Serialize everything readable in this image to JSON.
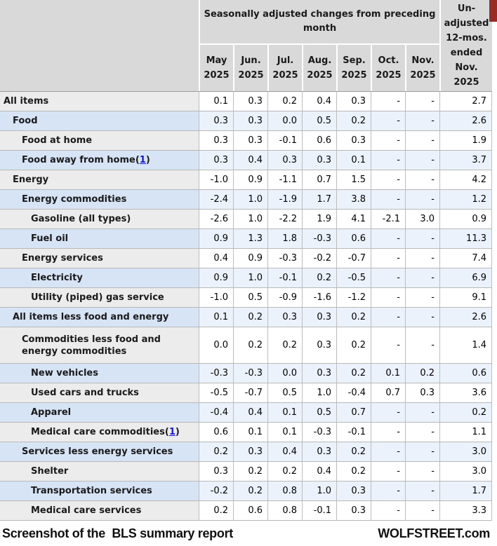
{
  "colors": {
    "header-gray": "#d9d9d9",
    "header-line": "#9c9c9c",
    "row-gray-label": "#ececec",
    "row-gray-value": "#ffffff",
    "row-blue-label": "#d7e4f6",
    "row-blue-value": "#ebf2fb",
    "grid-line-v": "#bdbdbd",
    "grid-line-h": "#b8b8b8",
    "text-dark": "#1a1a1a",
    "link-blue": "#1616e0",
    "brand-red": "#9a2a22"
  },
  "table": {
    "span_header": "Seasonally adjusted changes from preceding month",
    "year": "2025",
    "months": [
      "May",
      "Jun.",
      "Jul.",
      "Aug.",
      "Sep.",
      "Oct.",
      "Nov."
    ],
    "last_col_lines": [
      "Un-",
      "adjusted",
      "12-mos.",
      "ended",
      "Nov.",
      "2025"
    ],
    "rows": [
      {
        "label": "All items",
        "indent": 0,
        "footnote": null,
        "tall": false,
        "values": [
          "0.1",
          "0.3",
          "0.2",
          "0.4",
          "0.3",
          "-",
          "-",
          "2.7"
        ]
      },
      {
        "label": "Food",
        "indent": 1,
        "footnote": null,
        "tall": false,
        "values": [
          "0.3",
          "0.3",
          "0.0",
          "0.5",
          "0.2",
          "-",
          "-",
          "2.6"
        ]
      },
      {
        "label": "Food at home",
        "indent": 2,
        "footnote": null,
        "tall": false,
        "values": [
          "0.3",
          "0.3",
          "-0.1",
          "0.6",
          "0.3",
          "-",
          "-",
          "1.9"
        ]
      },
      {
        "label": "Food away from home",
        "indent": 2,
        "footnote": "1",
        "tall": false,
        "values": [
          "0.3",
          "0.4",
          "0.3",
          "0.3",
          "0.1",
          "-",
          "-",
          "3.7"
        ]
      },
      {
        "label": "Energy",
        "indent": 1,
        "footnote": null,
        "tall": false,
        "values": [
          "-1.0",
          "0.9",
          "-1.1",
          "0.7",
          "1.5",
          "-",
          "-",
          "4.2"
        ]
      },
      {
        "label": "Energy commodities",
        "indent": 2,
        "footnote": null,
        "tall": false,
        "values": [
          "-2.4",
          "1.0",
          "-1.9",
          "1.7",
          "3.8",
          "-",
          "-",
          "1.2"
        ]
      },
      {
        "label": "Gasoline (all types)",
        "indent": 3,
        "footnote": null,
        "tall": false,
        "values": [
          "-2.6",
          "1.0",
          "-2.2",
          "1.9",
          "4.1",
          "-2.1",
          "3.0",
          "0.9"
        ]
      },
      {
        "label": "Fuel oil",
        "indent": 3,
        "footnote": null,
        "tall": false,
        "values": [
          "0.9",
          "1.3",
          "1.8",
          "-0.3",
          "0.6",
          "-",
          "-",
          "11.3"
        ]
      },
      {
        "label": "Energy services",
        "indent": 2,
        "footnote": null,
        "tall": false,
        "values": [
          "0.4",
          "0.9",
          "-0.3",
          "-0.2",
          "-0.7",
          "-",
          "-",
          "7.4"
        ]
      },
      {
        "label": "Electricity",
        "indent": 3,
        "footnote": null,
        "tall": false,
        "values": [
          "0.9",
          "1.0",
          "-0.1",
          "0.2",
          "-0.5",
          "-",
          "-",
          "6.9"
        ]
      },
      {
        "label": "Utility (piped) gas service",
        "indent": 3,
        "footnote": null,
        "tall": false,
        "values": [
          "-1.0",
          "0.5",
          "-0.9",
          "-1.6",
          "-1.2",
          "-",
          "-",
          "9.1"
        ]
      },
      {
        "label": "All items less food and energy",
        "indent": 1,
        "footnote": null,
        "tall": false,
        "values": [
          "0.1",
          "0.2",
          "0.3",
          "0.3",
          "0.2",
          "-",
          "-",
          "2.6"
        ]
      },
      {
        "label": "Commodities less food and energy commodities",
        "indent": 2,
        "footnote": null,
        "tall": true,
        "values": [
          "0.0",
          "0.2",
          "0.2",
          "0.3",
          "0.2",
          "-",
          "-",
          "1.4"
        ]
      },
      {
        "label": "New vehicles",
        "indent": 3,
        "footnote": null,
        "tall": false,
        "values": [
          "-0.3",
          "-0.3",
          "0.0",
          "0.3",
          "0.2",
          "0.1",
          "0.2",
          "0.6"
        ]
      },
      {
        "label": "Used cars and trucks",
        "indent": 3,
        "footnote": null,
        "tall": false,
        "values": [
          "-0.5",
          "-0.7",
          "0.5",
          "1.0",
          "-0.4",
          "0.7",
          "0.3",
          "3.6"
        ]
      },
      {
        "label": "Apparel",
        "indent": 3,
        "footnote": null,
        "tall": false,
        "values": [
          "-0.4",
          "0.4",
          "0.1",
          "0.5",
          "0.7",
          "-",
          "-",
          "0.2"
        ]
      },
      {
        "label": "Medical care commodities",
        "indent": 3,
        "footnote": "1",
        "tall": false,
        "values": [
          "0.6",
          "0.1",
          "0.1",
          "-0.3",
          "-0.1",
          "-",
          "-",
          "1.1"
        ]
      },
      {
        "label": "Services less energy services",
        "indent": 2,
        "footnote": null,
        "tall": false,
        "values": [
          "0.2",
          "0.3",
          "0.4",
          "0.3",
          "0.2",
          "-",
          "-",
          "3.0"
        ]
      },
      {
        "label": "Shelter",
        "indent": 3,
        "footnote": null,
        "tall": false,
        "values": [
          "0.3",
          "0.2",
          "0.2",
          "0.4",
          "0.2",
          "-",
          "-",
          "3.0"
        ]
      },
      {
        "label": "Transportation services",
        "indent": 3,
        "footnote": null,
        "tall": false,
        "values": [
          "-0.2",
          "0.2",
          "0.8",
          "1.0",
          "0.3",
          "-",
          "-",
          "1.7"
        ]
      },
      {
        "label": "Medical care services",
        "indent": 3,
        "footnote": null,
        "tall": false,
        "values": [
          "0.2",
          "0.6",
          "0.8",
          "-0.1",
          "0.3",
          "-",
          "-",
          "3.3"
        ]
      }
    ]
  },
  "footer": {
    "left": "Screenshot of the  BLS summary report",
    "right": "WOLFSTREET.com"
  }
}
